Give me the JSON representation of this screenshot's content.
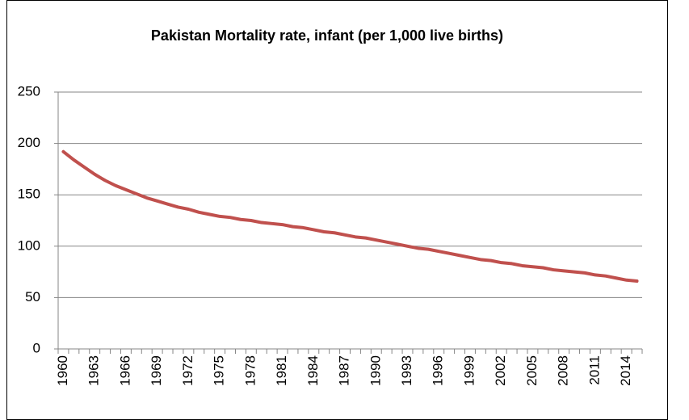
{
  "chart_data": {
    "type": "line",
    "title": "Pakistan Mortality rate, infant (per 1,000 live births)",
    "categories": [
      "1960",
      null,
      null,
      "1963",
      null,
      null,
      "1966",
      null,
      null,
      "1969",
      null,
      null,
      "1972",
      null,
      null,
      "1975",
      null,
      null,
      "1978",
      null,
      null,
      "1981",
      null,
      null,
      "1984",
      null,
      null,
      "1987",
      null,
      null,
      "1990",
      null,
      null,
      "1993",
      null,
      null,
      "1996",
      null,
      null,
      "1999",
      null,
      null,
      "2002",
      null,
      null,
      "2005",
      null,
      null,
      "2008",
      null,
      null,
      "2011",
      null,
      null,
      "2014",
      null
    ],
    "series": [
      {
        "name": "Pakistan",
        "color": "#c0504d",
        "values": [
          192,
          184,
          177,
          170,
          164,
          159,
          155,
          151,
          147,
          144,
          141,
          138,
          136,
          133,
          131,
          129,
          128,
          126,
          125,
          123,
          122,
          121,
          119,
          118,
          116,
          114,
          113,
          111,
          109,
          108,
          106,
          104,
          102,
          100,
          98,
          97,
          95,
          93,
          91,
          89,
          87,
          86,
          84,
          83,
          81,
          80,
          79,
          77,
          76,
          75,
          74,
          72,
          71,
          69,
          67,
          66
        ]
      }
    ],
    "ylim": [
      0,
      250
    ],
    "yticks": [
      0,
      50,
      100,
      150,
      200,
      250
    ],
    "grid": true
  }
}
